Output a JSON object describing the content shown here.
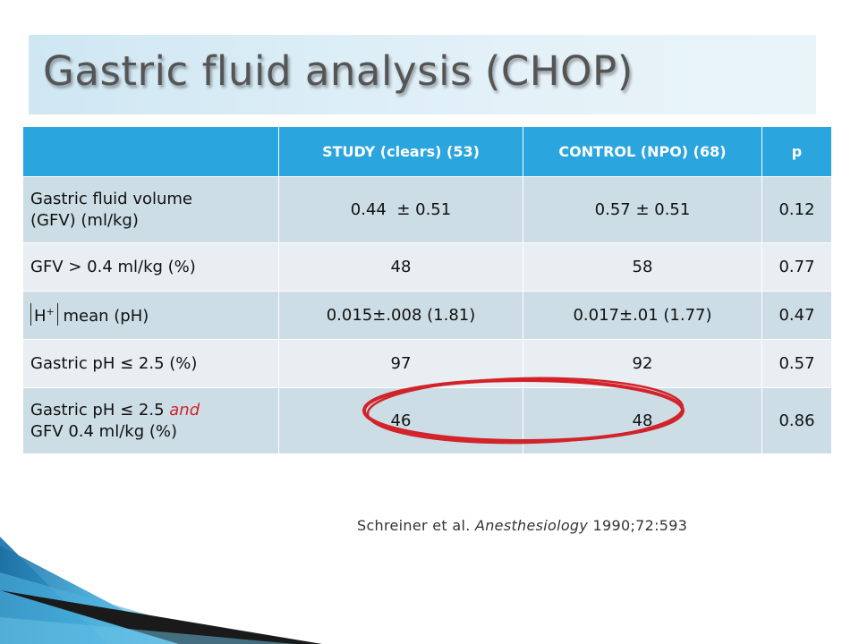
{
  "slide": {
    "title": "Gastric fluid analysis (CHOP)",
    "table": {
      "headers": [
        "",
        "STUDY (clears) (53)",
        "CONTROL (NPO) (68)",
        "p"
      ],
      "rows": [
        {
          "label_line1": "Gastric fluid volume",
          "label_line2": "(GFV) (ml/kg)",
          "study": "0.44  ± 0.51",
          "control": "0.57 ± 0.51",
          "p": "0.12"
        },
        {
          "label": "GFV > 0.4 ml/kg (%)",
          "study": "48",
          "control": "58",
          "p": "0.77"
        },
        {
          "label_h": "H",
          "label_sup": "+",
          "label_rest": " mean (pH)",
          "study": "0.015±.008 (1.81)",
          "control": "0.017±.01 (1.77)",
          "p": "0.47"
        },
        {
          "label": "Gastric pH ≤ 2.5 (%)",
          "study": "97",
          "control": "92",
          "p": "0.57"
        },
        {
          "label_part1": "Gastric pH ≤ 2.5 ",
          "label_red": "and",
          "label_line2": "GFV 0.4 ml/kg (%)",
          "study": "46",
          "control": "48",
          "p": "0.86"
        }
      ]
    },
    "citation": {
      "authors": "Schreiner et al. ",
      "journal": "Anesthesiology",
      "ref": " 1990;72:593"
    }
  },
  "colors": {
    "header_bg": "#2aa5de",
    "row_dark": "#ccdde6",
    "row_light": "#e8eef2",
    "highlight_circle": "#d2232a"
  }
}
